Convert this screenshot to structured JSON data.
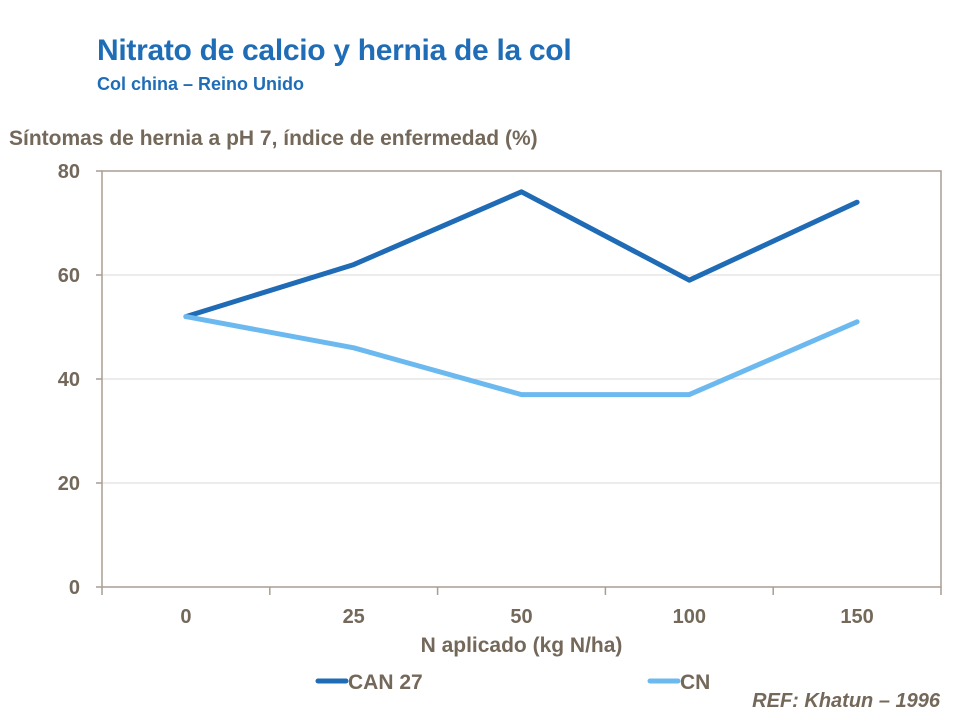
{
  "title": "Nitrato de calcio y hernia de la col",
  "subtitle": "Col china – Reino Unido",
  "reference": "REF: Khatun – 1996",
  "chart_data": {
    "type": "line",
    "ylabel": "Síntomas de hernia a pH 7, índice de enfermedad (%)",
    "xlabel": "N aplicado (kg N/ha)",
    "categories": [
      "0",
      "25",
      "50",
      "100",
      "150"
    ],
    "ylim": [
      0,
      80
    ],
    "yticks": [
      "0",
      "20",
      "40",
      "60",
      "80"
    ],
    "grid": true,
    "legend": "bottom",
    "series": [
      {
        "name": "CAN 27",
        "color": "#1f6bb5",
        "values": [
          52,
          62,
          76,
          59,
          74
        ]
      },
      {
        "name": "CN",
        "color": "#6cb9f0",
        "values": [
          52,
          46,
          37,
          37,
          51
        ]
      }
    ]
  }
}
